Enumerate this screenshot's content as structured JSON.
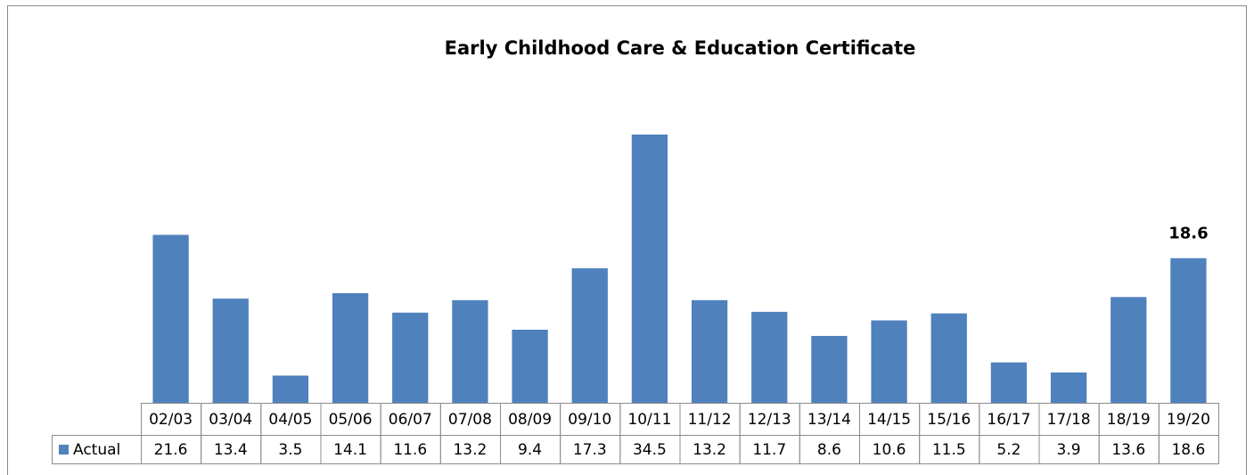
{
  "chart_data": {
    "type": "bar",
    "title": "Early Childhood Care & Education Certificate",
    "categories": [
      "02/03",
      "03/04",
      "04/05",
      "05/06",
      "06/07",
      "07/08",
      "08/09",
      "09/10",
      "10/11",
      "11/12",
      "12/13",
      "13/14",
      "14/15",
      "15/16",
      "16/17",
      "17/18",
      "18/19",
      "19/20"
    ],
    "series": [
      {
        "name": "Actual",
        "color": "#4f81bd",
        "values": [
          21.6,
          13.4,
          3.5,
          14.1,
          11.6,
          13.2,
          9.4,
          17.3,
          34.5,
          13.2,
          11.7,
          8.6,
          10.6,
          11.5,
          5.2,
          3.9,
          13.6,
          18.6
        ]
      }
    ],
    "ylim": [
      0,
      40
    ]
  }
}
